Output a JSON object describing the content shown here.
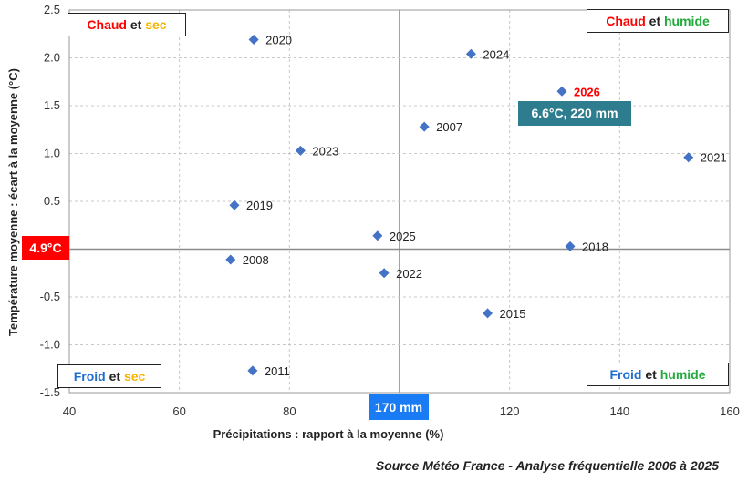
{
  "chart_data": {
    "type": "scatter",
    "xlabel": "Précipitations : rapport à la moyenne (%)",
    "ylabel": "Température moyenne : écart à la moyenne (°C)",
    "xlim": [
      40,
      160
    ],
    "ylim": [
      -1.5,
      2.5
    ],
    "x_ticks": [
      "40",
      "60",
      "80",
      "100",
      "120",
      "140",
      "160"
    ],
    "y_ticks": [
      "-1.5",
      "-1.0",
      "-0.5",
      "0",
      "0.5",
      "1.0",
      "1.5",
      "2.0",
      "2.5"
    ],
    "grid": true,
    "marker_color": "#4472c4",
    "highlight_color": "#ff0000",
    "points": [
      {
        "label": "2020",
        "x": 73.5,
        "y": 2.19
      },
      {
        "label": "2024",
        "x": 113.0,
        "y": 2.04
      },
      {
        "label": "2026",
        "x": 129.5,
        "y": 1.65,
        "highlight": true
      },
      {
        "label": "2007",
        "x": 104.5,
        "y": 1.28
      },
      {
        "label": "2023",
        "x": 82.0,
        "y": 1.03
      },
      {
        "label": "2021",
        "x": 152.5,
        "y": 0.96
      },
      {
        "label": "2019",
        "x": 70.0,
        "y": 0.46
      },
      {
        "label": "2025",
        "x": 96.0,
        "y": 0.14
      },
      {
        "label": "2018",
        "x": 131.0,
        "y": 0.03
      },
      {
        "label": "2008",
        "x": 69.3,
        "y": -0.11
      },
      {
        "label": "2022",
        "x": 97.2,
        "y": -0.25
      },
      {
        "label": "2015",
        "x": 116.0,
        "y": -0.67
      },
      {
        "label": "2011",
        "x": 73.3,
        "y": -1.27
      }
    ],
    "reference_lines": {
      "x": 100,
      "y": 0
    },
    "reference_labels": {
      "x": "170 mm",
      "y": "4.9°C"
    },
    "callout": {
      "text": "6.6°C, 220 mm"
    },
    "quadrants": {
      "top_left": [
        {
          "text": "Chaud",
          "color": "red"
        },
        {
          "text": " et ",
          "color": "black"
        },
        {
          "text": "sec",
          "color": "yellow"
        }
      ],
      "top_right": [
        {
          "text": "Chaud",
          "color": "red"
        },
        {
          "text": " et ",
          "color": "black"
        },
        {
          "text": "humide",
          "color": "green"
        }
      ],
      "bottom_left": [
        {
          "text": "Froid",
          "color": "blue"
        },
        {
          "text": " et ",
          "color": "black"
        },
        {
          "text": "sec",
          "color": "yellow"
        }
      ],
      "bottom_right": [
        {
          "text": "Froid",
          "color": "blue"
        },
        {
          "text": " et ",
          "color": "black"
        },
        {
          "text": "humide",
          "color": "green"
        }
      ]
    }
  },
  "source": "Source Météo France - Analyse fréquentielle 2006 à 2025"
}
